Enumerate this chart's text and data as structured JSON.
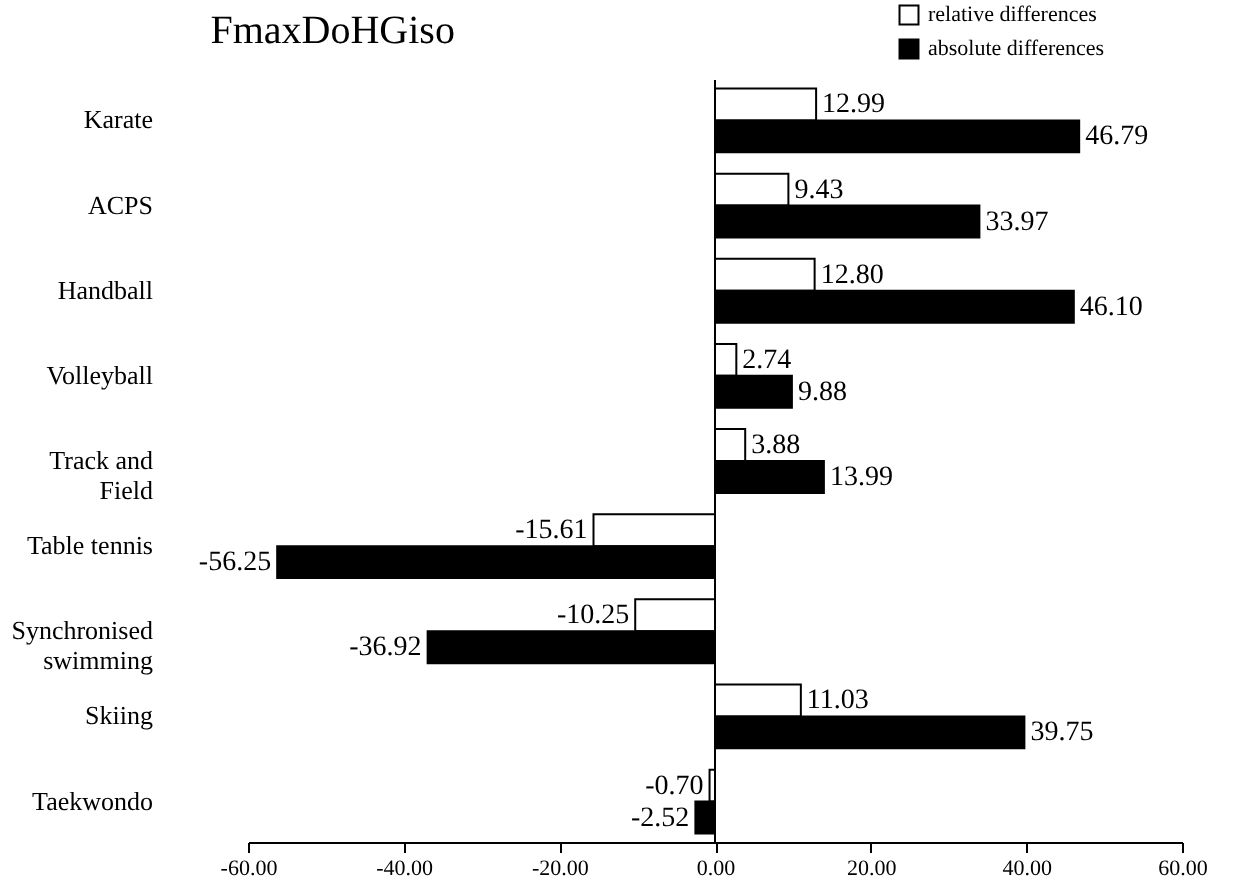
{
  "chart_data": {
    "type": "bar",
    "orientation": "horizontal",
    "title": "FmaxDoHGiso",
    "categories": [
      "Karate",
      "ACPS",
      "Handball",
      "Volleyball",
      "Track and Field",
      "Table tennis",
      "Synchronised swimming",
      "Skiing",
      "Taekwondo"
    ],
    "series": [
      {
        "name": "relative differences",
        "color": "#ffffff",
        "values": [
          12.99,
          9.43,
          12.8,
          2.74,
          3.88,
          -15.61,
          -10.25,
          11.03,
          -0.7
        ],
        "value_labels": [
          "12.99",
          "9.43",
          "12.80",
          "2.74",
          "3.88",
          "-15.61",
          "-10.25",
          "11.03",
          "-0.70"
        ]
      },
      {
        "name": "absolute differences",
        "color": "#000000",
        "values": [
          46.79,
          33.97,
          46.1,
          9.88,
          13.99,
          -56.25,
          -36.92,
          39.75,
          -2.52
        ],
        "value_labels": [
          "46.79",
          "33.97",
          "46.10",
          "9.88",
          "13.99",
          "-56.25",
          "-36.92",
          "39.75",
          "-2.52"
        ]
      }
    ],
    "xlim": [
      -60,
      60
    ],
    "xticks": [
      {
        "value": -60,
        "label": "-60.00"
      },
      {
        "value": -40,
        "label": "-40.00"
      },
      {
        "value": -20,
        "label": "-20.00"
      },
      {
        "value": 0,
        "label": "0.00"
      },
      {
        "value": 20,
        "label": "20.00"
      },
      {
        "value": 40,
        "label": "40.00"
      },
      {
        "value": 60,
        "label": "60.00"
      }
    ],
    "ref_lines": [
      {
        "axis": "x",
        "value": 0
      }
    ],
    "grid": false,
    "legend": "top right"
  }
}
